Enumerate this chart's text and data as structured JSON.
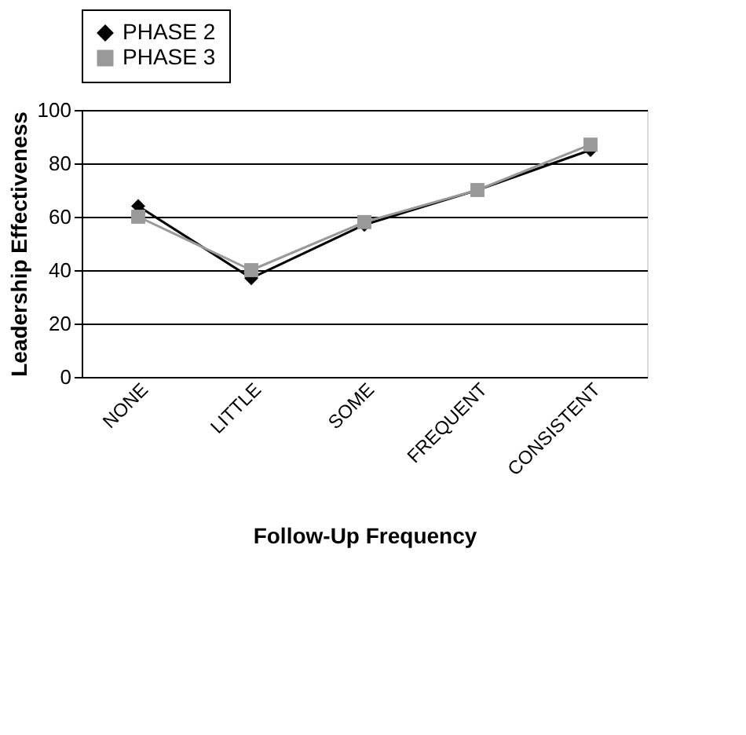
{
  "chart_data": {
    "type": "line",
    "xlabel": "Follow-Up Frequency",
    "ylabel": "Leadership Effectiveness",
    "categories": [
      "NONE",
      "LITTLE",
      "SOME",
      "FREQUENT",
      "CONSISTENT"
    ],
    "series": [
      {
        "name": "PHASE 2",
        "color": "#000000",
        "marker": "diamond",
        "values": [
          64,
          37,
          57,
          70,
          85
        ]
      },
      {
        "name": "PHASE 3",
        "color": "#999999",
        "marker": "square",
        "values": [
          60,
          40,
          58,
          70,
          87
        ]
      }
    ],
    "ylim": [
      0,
      100
    ],
    "yticks": [
      0,
      20,
      40,
      60,
      80,
      100
    ],
    "grid": "y",
    "legend": "top",
    "line_style": "solid"
  }
}
